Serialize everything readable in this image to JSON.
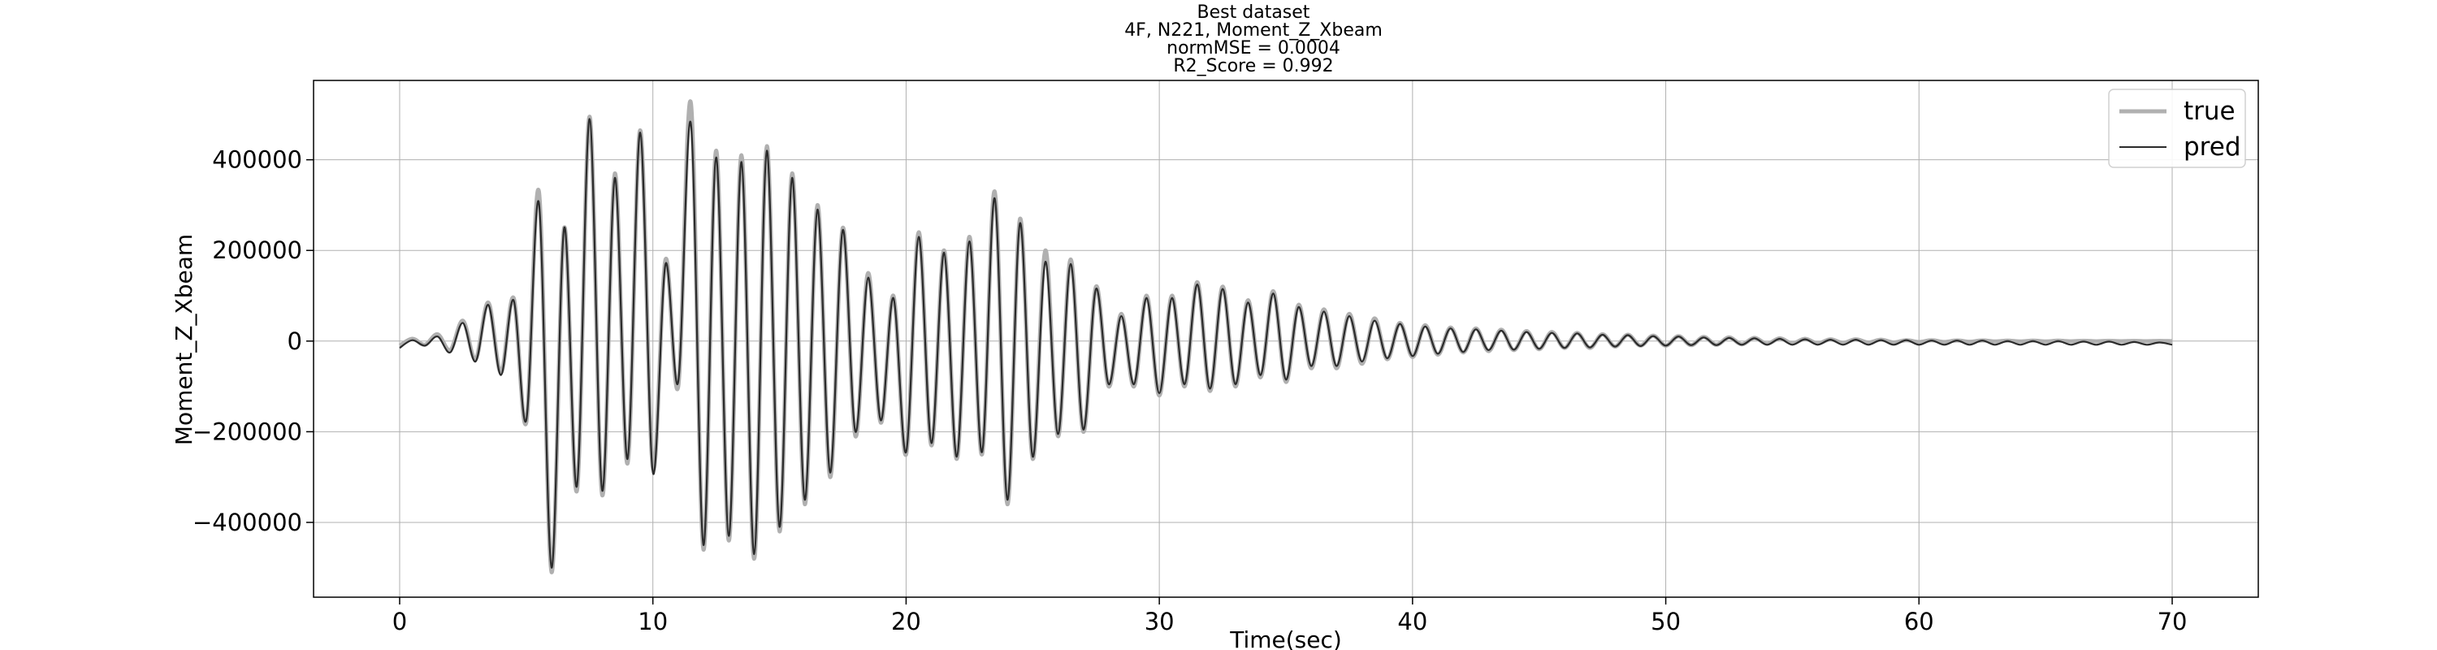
{
  "chart_data": {
    "type": "line",
    "title_lines": [
      "Best dataset",
      "4F, N221, Moment_Z_Xbeam",
      "normMSE = 0.0004",
      "R2_Score = 0.992"
    ],
    "xlabel": "Time(sec)",
    "ylabel": "Moment_Z_Xbeam",
    "xlim": [
      -3.4,
      73.4
    ],
    "ylim": [
      -565000,
      575000
    ],
    "xticks": [
      0,
      10,
      20,
      30,
      40,
      50,
      60,
      70
    ],
    "xtick_labels": [
      "0",
      "10",
      "20",
      "30",
      "40",
      "50",
      "60",
      "70"
    ],
    "yticks": [
      -400000,
      -200000,
      0,
      200000,
      400000
    ],
    "ytick_labels": [
      "−400000",
      "−200000",
      "0",
      "200000",
      "400000"
    ],
    "grid": true,
    "legend_position": "top-right",
    "legend": [
      "true",
      "pred"
    ],
    "series": [
      {
        "name": "true",
        "color": "#b0b0b0"
      },
      {
        "name": "pred",
        "color": "#2b2b2b"
      }
    ],
    "x": [
      0,
      0.5,
      1,
      1.5,
      2,
      2.5,
      3,
      3.5,
      4,
      4.5,
      5,
      5.5,
      6,
      6.5,
      7,
      7.5,
      8,
      8.5,
      9,
      9.5,
      10,
      10.5,
      11,
      11.5,
      12,
      12.5,
      13,
      13.5,
      14,
      14.5,
      15,
      15.5,
      16,
      16.5,
      17,
      17.5,
      18,
      18.5,
      19,
      19.5,
      20,
      20.5,
      21,
      21.5,
      22,
      22.5,
      23,
      23.5,
      24,
      24.5,
      25,
      25.5,
      26,
      26.5,
      27,
      27.5,
      28,
      28.5,
      29,
      29.5,
      30,
      30.5,
      31,
      31.5,
      32,
      32.5,
      33,
      33.5,
      34,
      34.5,
      35,
      35.5,
      36,
      36.5,
      37,
      37.5,
      38,
      38.5,
      39,
      39.5,
      40,
      40.5,
      41,
      41.5,
      42,
      42.5,
      43,
      43.5,
      44,
      44.5,
      45,
      45.5,
      46,
      46.5,
      47,
      47.5,
      48,
      48.5,
      49,
      49.5,
      50,
      50.5,
      51,
      51.5,
      52,
      52.5,
      53,
      53.5,
      54,
      54.5,
      55,
      55.5,
      56,
      56.5,
      57,
      57.5,
      58,
      58.5,
      59,
      59.5,
      60,
      60.5,
      61,
      61.5,
      62,
      62.5,
      63,
      63.5,
      64,
      64.5,
      65,
      65.5,
      66,
      66.5,
      67,
      67.5,
      68,
      68.5,
      69,
      69.5,
      70
    ],
    "true_values": [
      -10000,
      5000,
      -8000,
      15000,
      -20000,
      45000,
      -40000,
      85000,
      -70000,
      95000,
      -180000,
      330000,
      -510000,
      250000,
      -330000,
      495000,
      -340000,
      370000,
      -270000,
      465000,
      -280000,
      180000,
      -100000,
      525000,
      -460000,
      420000,
      -440000,
      410000,
      -480000,
      430000,
      -420000,
      370000,
      -360000,
      300000,
      -300000,
      250000,
      -210000,
      150000,
      -180000,
      100000,
      -250000,
      240000,
      -230000,
      200000,
      -260000,
      230000,
      -250000,
      330000,
      -360000,
      270000,
      -260000,
      200000,
      -210000,
      180000,
      -200000,
      120000,
      -100000,
      60000,
      -100000,
      100000,
      -120000,
      100000,
      -100000,
      130000,
      -110000,
      120000,
      -100000,
      90000,
      -80000,
      110000,
      -90000,
      80000,
      -60000,
      70000,
      -60000,
      60000,
      -50000,
      50000,
      -40000,
      40000,
      -35000,
      35000,
      -30000,
      30000,
      -25000,
      28000,
      -22000,
      25000,
      -20000,
      22000,
      -18000,
      20000,
      -15000,
      18000,
      -15000,
      15000,
      -12000,
      14000,
      -10000,
      12000,
      -10000,
      11000,
      -9000,
      9000,
      -8000,
      8000,
      -7000,
      7000,
      -6000,
      6000,
      -5000,
      5000,
      -5000,
      4000,
      -4000,
      4000,
      -3000,
      3000,
      -3000,
      2000,
      -2000,
      2000,
      -2000,
      1500,
      -1500,
      1500,
      -1000,
      1000,
      -1000,
      1000,
      -800,
      800,
      -600,
      600,
      -500,
      500,
      -400,
      400,
      -300,
      300,
      -200,
      200,
      0
    ],
    "pred_values": [
      -15000,
      2000,
      -10000,
      10000,
      -25000,
      40000,
      -45000,
      80000,
      -75000,
      90000,
      -175000,
      305000,
      -500000,
      250000,
      -320000,
      490000,
      -330000,
      360000,
      -260000,
      460000,
      -290000,
      170000,
      -90000,
      480000,
      -450000,
      405000,
      -430000,
      395000,
      -470000,
      420000,
      -410000,
      360000,
      -350000,
      290000,
      -290000,
      245000,
      -200000,
      140000,
      -175000,
      95000,
      -245000,
      230000,
      -225000,
      195000,
      -255000,
      220000,
      -245000,
      315000,
      -350000,
      260000,
      -255000,
      175000,
      -205000,
      170000,
      -195000,
      115000,
      -95000,
      55000,
      -95000,
      95000,
      -115000,
      95000,
      -95000,
      125000,
      -105000,
      115000,
      -95000,
      85000,
      -75000,
      105000,
      -85000,
      75000,
      -55000,
      65000,
      -55000,
      55000,
      -45000,
      45000,
      -38000,
      38000,
      -33000,
      32000,
      -28000,
      28000,
      -24000,
      26000,
      -20000,
      23000,
      -19000,
      20000,
      -17000,
      18000,
      -15000,
      17000,
      -14000,
      14000,
      -12000,
      13000,
      -11000,
      11000,
      -10000,
      10000,
      -9000,
      8000,
      -9000,
      7000,
      -8000,
      6000,
      -8000,
      5000,
      -8000,
      4000,
      -8000,
      3000,
      -8000,
      3000,
      -8000,
      2000,
      -8000,
      2000,
      -8000,
      1000,
      -8000,
      1000,
      -8000,
      1000,
      -8000,
      0,
      -8000,
      0,
      -8000,
      0,
      -8000,
      -1000,
      -8000,
      -1000,
      -8000,
      -2000,
      -8000,
      -3000,
      -8000
    ]
  }
}
